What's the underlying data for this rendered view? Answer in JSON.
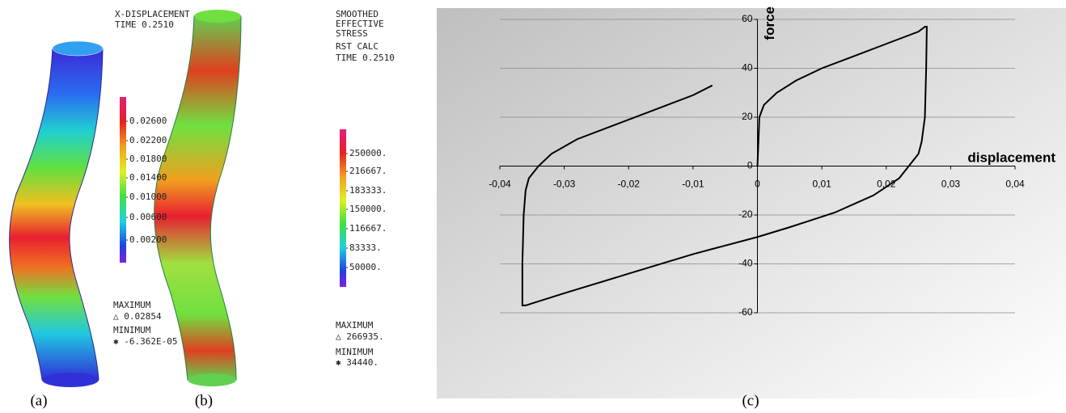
{
  "panels": [
    {
      "caption": "(a)",
      "heading": [
        "X-DISPLACEMENT",
        "TIME 0.2510"
      ],
      "legend": [
        "0.02600",
        "0.02200",
        "0.01800",
        "0.01400",
        "0.01000",
        "0.00600",
        "0.00200"
      ],
      "max_label": "MAXIMUM",
      "max_value": "△ 0.02854",
      "min_label": "MINIMUM",
      "min_value": "✱ -6.362E-05"
    },
    {
      "caption": "(b)",
      "heading": [
        "SMOOTHED",
        "EFFECTIVE",
        "STRESS",
        "RST CALC",
        "TIME 0.2510"
      ],
      "legend": [
        "250000.",
        "216667.",
        "183333.",
        "150000.",
        "116667.",
        "83333.",
        "50000."
      ],
      "max_label": "MAXIMUM",
      "max_value": "△ 266935.",
      "min_label": "MINIMUM",
      "min_value": "✱ 34440."
    }
  ],
  "chart_data": {
    "type": "line",
    "caption": "(c)",
    "x_label": "displacement",
    "y_label": "force",
    "color": "#000000",
    "grid": true,
    "x": [
      0,
      0.0003,
      0.001,
      0.003,
      0.006,
      0.01,
      0.015,
      0.02,
      0.025,
      0.026,
      0.0263,
      0.0262,
      0.026,
      0.0255,
      0.025,
      0.0235,
      0.022,
      0.018,
      0.012,
      0.005,
      0,
      -0.01,
      -0.02,
      -0.03,
      -0.036,
      -0.0365,
      -0.0365,
      -0.0363,
      -0.036,
      -0.0355,
      -0.034,
      -0.032,
      -0.028,
      -0.022,
      -0.015,
      -0.01,
      -0.007
    ],
    "values": [
      0,
      20,
      25,
      30,
      35,
      40,
      45,
      50,
      55,
      57,
      57,
      40,
      20,
      10,
      5,
      0,
      -5,
      -12,
      -19,
      -25,
      -29,
      -36,
      -44,
      -52,
      -57,
      -57,
      -40,
      -20,
      -10,
      -5,
      0,
      5,
      11,
      17,
      24,
      29,
      33
    ],
    "xlim": [
      -0.04,
      0.04
    ],
    "xticks": [
      {
        "value": -0.04,
        "label": "-0,04"
      },
      {
        "value": -0.03,
        "label": "-0,03"
      },
      {
        "value": -0.02,
        "label": "-0,02"
      },
      {
        "value": -0.01,
        "label": "-0,01"
      },
      0,
      {
        "value": 0.01,
        "label": "0,01"
      },
      {
        "value": 0.02,
        "label": "0,02"
      },
      {
        "value": 0.03,
        "label": "0,03"
      },
      {
        "value": 0.04,
        "label": "0,04"
      }
    ],
    "ylim": [
      -60,
      60
    ],
    "yticks": [
      -60,
      -40,
      -20,
      0,
      20,
      40,
      60
    ]
  }
}
